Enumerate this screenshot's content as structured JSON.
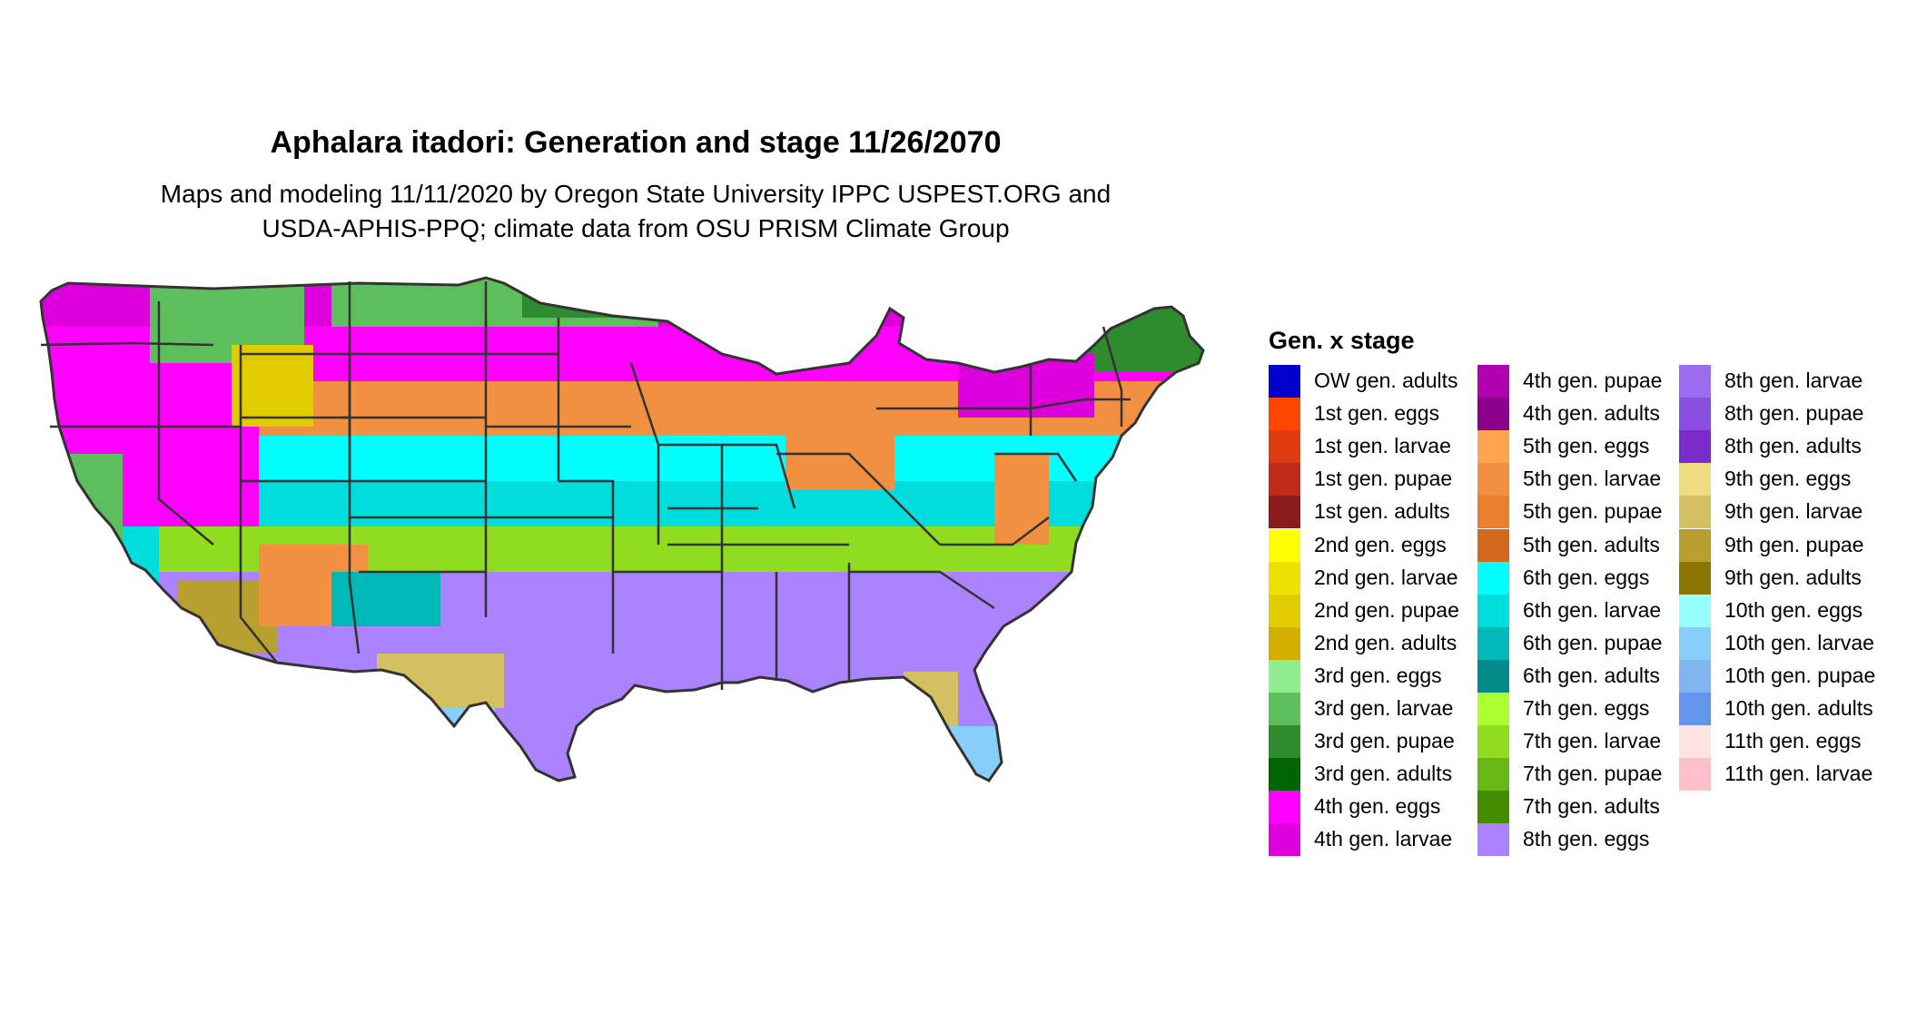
{
  "title": "Aphalara itadori: Generation and stage 11/26/2070",
  "subtitle_lines": [
    "Maps and modeling 11/11/2020 by Oregon State University IPPC USPEST.ORG and",
    "USDA-APHIS-PPQ; climate data from OSU PRISM Climate Group"
  ],
  "legend": {
    "title": "Gen. x stage",
    "items": [
      {
        "label": "OW gen. adults",
        "color": "#0000CD"
      },
      {
        "label": "1st gen. eggs",
        "color": "#FF4500"
      },
      {
        "label": "1st gen. larvae",
        "color": "#E03A10"
      },
      {
        "label": "1st gen. pupae",
        "color": "#C02A18"
      },
      {
        "label": "1st gen. adults",
        "color": "#8B1A1A"
      },
      {
        "label": "2nd gen. eggs",
        "color": "#FFFF00"
      },
      {
        "label": "2nd gen. larvae",
        "color": "#EEE000"
      },
      {
        "label": "2nd gen. pupae",
        "color": "#E0CC00"
      },
      {
        "label": "2nd gen. adults",
        "color": "#D4AF00"
      },
      {
        "label": "3rd gen. eggs",
        "color": "#90EE90"
      },
      {
        "label": "3rd gen. larvae",
        "color": "#5CBF5C"
      },
      {
        "label": "3rd gen. pupae",
        "color": "#2E8B2E"
      },
      {
        "label": "3rd gen. adults",
        "color": "#006400"
      },
      {
        "label": "4th gen. eggs",
        "color": "#FF00FF"
      },
      {
        "label": "4th gen. larvae",
        "color": "#DD00DD"
      },
      {
        "label": "4th gen. pupae",
        "color": "#B000B0"
      },
      {
        "label": "4th gen. adults",
        "color": "#8B008B"
      },
      {
        "label": "5th gen. eggs",
        "color": "#FFA54F"
      },
      {
        "label": "5th gen. larvae",
        "color": "#F09040"
      },
      {
        "label": "5th gen. pupae",
        "color": "#E88030"
      },
      {
        "label": "5th gen. adults",
        "color": "#D2691E"
      },
      {
        "label": "6th gen. eggs",
        "color": "#00FFFF"
      },
      {
        "label": "6th gen. larvae",
        "color": "#00DDDD"
      },
      {
        "label": "6th gen. pupae",
        "color": "#00B8B8"
      },
      {
        "label": "6th gen. adults",
        "color": "#008B8B"
      },
      {
        "label": "7th gen. eggs",
        "color": "#ADFF2F"
      },
      {
        "label": "7th gen. larvae",
        "color": "#90DD20"
      },
      {
        "label": "7th gen. pupae",
        "color": "#66B814"
      },
      {
        "label": "7th gen. adults",
        "color": "#458B00"
      },
      {
        "label": "8th gen. eggs",
        "color": "#AB82FF"
      },
      {
        "label": "8th gen. larvae",
        "color": "#9B6BF0"
      },
      {
        "label": "8th gen. pupae",
        "color": "#8A4FE0"
      },
      {
        "label": "8th gen. adults",
        "color": "#7A2BCC"
      },
      {
        "label": "9th gen. eggs",
        "color": "#EEDC82"
      },
      {
        "label": "9th gen. larvae",
        "color": "#D4C060"
      },
      {
        "label": "9th gen. pupae",
        "color": "#B8A030"
      },
      {
        "label": "9th gen. adults",
        "color": "#8B7500"
      },
      {
        "label": "10th gen. eggs",
        "color": "#97FFFF"
      },
      {
        "label": "10th gen. larvae",
        "color": "#87CEFA"
      },
      {
        "label": "10th gen. pupae",
        "color": "#7EB4F0"
      },
      {
        "label": "10th gen. adults",
        "color": "#6495ED"
      },
      {
        "label": "11th gen. eggs",
        "color": "#FFE4E1"
      },
      {
        "label": "11th gen. larvae",
        "color": "#FFC0CB"
      }
    ]
  }
}
